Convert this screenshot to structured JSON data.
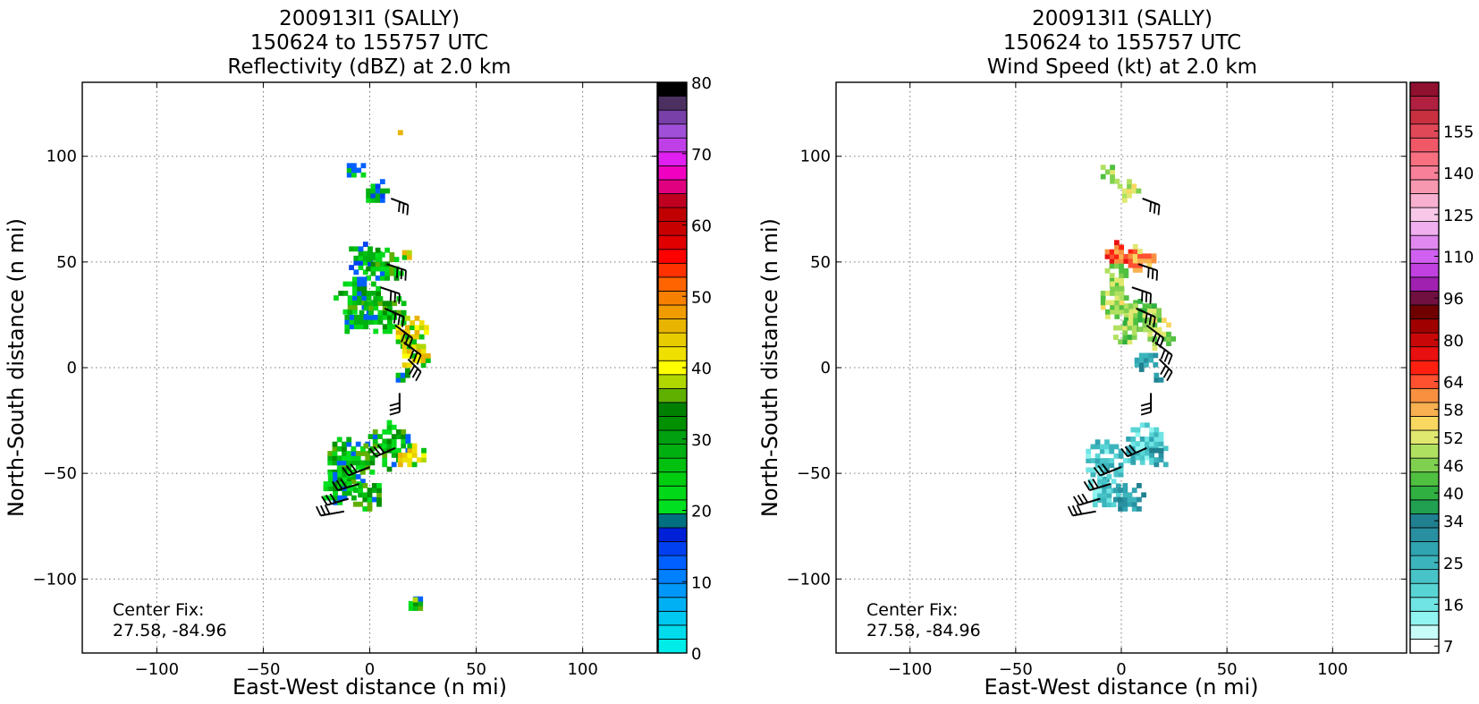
{
  "chart_data": [
    {
      "type": "heatmap",
      "title_lines": [
        "200913I1 (SALLY)",
        "150624 to 155757 UTC",
        "Reflectivity (dBZ) at 2.0 km"
      ],
      "xlabel": "East-West distance (n mi)",
      "ylabel": "North-South distance (n mi)",
      "xlim": [
        -135,
        135
      ],
      "ylim": [
        -135,
        135
      ],
      "xticks": [
        -100,
        -50,
        0,
        50,
        100
      ],
      "yticks": [
        -100,
        -50,
        0,
        50,
        100
      ],
      "xtick_labels": [
        "−100",
        "−50",
        "0",
        "50",
        "100"
      ],
      "ytick_labels": [
        "−100",
        "−50",
        "0",
        "50",
        "100"
      ],
      "grid": true,
      "annotation_lines": [
        "Center Fix:",
        "27.58, -84.96"
      ],
      "colorbar": {
        "min": 0,
        "max": 80,
        "tick_values": [
          0,
          10,
          20,
          30,
          40,
          50,
          60,
          70,
          80
        ],
        "tick_labels": [
          "0",
          "10",
          "20",
          "30",
          "40",
          "50",
          "60",
          "70",
          "80"
        ],
        "colors": [
          "#00ece8",
          "#00dcec",
          "#00c8f0",
          "#00b0f4",
          "#0098f8",
          "#0080fc",
          "#0060ff",
          "#0040f0",
          "#0020d8",
          "#007080",
          "#00e020",
          "#00d818",
          "#00cc10",
          "#00c010",
          "#00b010",
          "#00a010",
          "#009000",
          "#008000",
          "#60b000",
          "#b0d800",
          "#ffff00",
          "#f0e000",
          "#e8cc00",
          "#e8b400",
          "#f09c00",
          "#f88000",
          "#ff6400",
          "#ff3200",
          "#ff0000",
          "#e00000",
          "#c80000",
          "#c00000",
          "#c00020",
          "#e00080",
          "#f000c0",
          "#e020f0",
          "#c040e8",
          "#a050d8",
          "#7840a8",
          "#4c3060",
          "#000000"
        ]
      },
      "field_clusters": [
        {
          "x": 14,
          "y": 111,
          "r": 3,
          "kind": "hi"
        },
        {
          "x": -8,
          "y": 93,
          "r": 5,
          "kind": "low"
        },
        {
          "x": 2,
          "y": 82,
          "r": 6,
          "kind": "low"
        },
        {
          "x": -4,
          "y": 50,
          "r": 8,
          "kind": "low"
        },
        {
          "x": 5,
          "y": 46,
          "r": 9,
          "kind": "mid"
        },
        {
          "x": 16,
          "y": 52,
          "r": 3,
          "kind": "hi"
        },
        {
          "x": -6,
          "y": 32,
          "r": 11,
          "kind": "mid"
        },
        {
          "x": 6,
          "y": 25,
          "r": 11,
          "kind": "mid"
        },
        {
          "x": 18,
          "y": 15,
          "r": 8,
          "kind": "hi"
        },
        {
          "x": 20,
          "y": 5,
          "r": 7,
          "kind": "hi"
        },
        {
          "x": -8,
          "y": 20,
          "r": 6,
          "kind": "low"
        },
        {
          "x": 14,
          "y": -5,
          "r": 4,
          "kind": "mid"
        },
        {
          "x": -10,
          "y": -45,
          "r": 12,
          "kind": "mid"
        },
        {
          "x": 8,
          "y": -38,
          "r": 11,
          "kind": "mid"
        },
        {
          "x": 18,
          "y": -42,
          "r": 7,
          "kind": "hi"
        },
        {
          "x": -15,
          "y": -58,
          "r": 9,
          "kind": "mid"
        },
        {
          "x": -2,
          "y": -62,
          "r": 8,
          "kind": "mid"
        },
        {
          "x": 20,
          "y": -113,
          "r": 4,
          "kind": "mid"
        },
        {
          "x": 20,
          "y": -111,
          "r": 2,
          "kind": "hi"
        }
      ],
      "wind_barbs": [
        {
          "x": 10,
          "y": 80,
          "u": 8,
          "v": -3
        },
        {
          "x": 8,
          "y": 49,
          "u": 9,
          "v": -3
        },
        {
          "x": 5,
          "y": 38,
          "u": 9,
          "v": -3
        },
        {
          "x": 7,
          "y": 28,
          "u": 9,
          "v": -4
        },
        {
          "x": 12,
          "y": 20,
          "u": 8,
          "v": -6
        },
        {
          "x": 16,
          "y": 12,
          "u": 8,
          "v": -6
        },
        {
          "x": 18,
          "y": 4,
          "u": 6,
          "v": -6
        },
        {
          "x": 14,
          "y": -12,
          "u": 0,
          "v": -9
        },
        {
          "x": 12,
          "y": -38,
          "u": -9,
          "v": -4
        },
        {
          "x": 0,
          "y": -47,
          "u": -10,
          "v": -4
        },
        {
          "x": -5,
          "y": -55,
          "u": -10,
          "v": -3
        },
        {
          "x": -10,
          "y": -62,
          "u": -10,
          "v": -3
        },
        {
          "x": -12,
          "y": -68,
          "u": -11,
          "v": -2
        }
      ]
    },
    {
      "type": "heatmap",
      "title_lines": [
        "200913I1 (SALLY)",
        "150624 to 155757 UTC",
        "Wind Speed (kt) at 2.0 km"
      ],
      "xlabel": "East-West distance (n mi)",
      "ylabel": "North-South distance (n mi)",
      "xlim": [
        -135,
        135
      ],
      "ylim": [
        -135,
        135
      ],
      "xticks": [
        -100,
        -50,
        0,
        50,
        100
      ],
      "yticks": [
        -100,
        -50,
        0,
        50,
        100
      ],
      "xtick_labels": [
        "−100",
        "−50",
        "0",
        "50",
        "100"
      ],
      "ytick_labels": [
        "−100",
        "−50",
        "0",
        "50",
        "100"
      ],
      "grid": true,
      "annotation_lines": [
        "Center Fix:",
        "27.58, -84.96"
      ],
      "colorbar": {
        "tick_labels": [
          "7",
          "16",
          "25",
          "34",
          "40",
          "46",
          "52",
          "58",
          "64",
          "80",
          "96",
          "110",
          "125",
          "140",
          "155"
        ],
        "tick_level_index": [
          0,
          3,
          6,
          9,
          11,
          13,
          15,
          17,
          19,
          22,
          25,
          28,
          31,
          34,
          37
        ],
        "colors": [
          "#ffffff",
          "#c8fcf8",
          "#90f4f0",
          "#70e4e4",
          "#58d4d4",
          "#48c4c8",
          "#3cb4bc",
          "#30a4b0",
          "#2890a0",
          "#208090",
          "#20a050",
          "#30b040",
          "#50c040",
          "#80d050",
          "#b0e060",
          "#e0e870",
          "#f8d860",
          "#f8b050",
          "#f89040",
          "#ff5030",
          "#ff2010",
          "#e81010",
          "#c80808",
          "#a00000",
          "#700000",
          "#701040",
          "#a020b0",
          "#c040e0",
          "#d060f0",
          "#e088f0",
          "#f0b0f0",
          "#f8c8e8",
          "#f8b0d0",
          "#f898b0",
          "#f88098",
          "#f87080",
          "#f05868",
          "#e04858",
          "#c83040",
          "#b02040",
          "#901030"
        ]
      },
      "field_clusters": [
        {
          "x": -7,
          "y": 90,
          "r": 5,
          "kind": "w_mid"
        },
        {
          "x": 2,
          "y": 82,
          "r": 6,
          "kind": "w_yel"
        },
        {
          "x": -3,
          "y": 52,
          "r": 7,
          "kind": "w_red"
        },
        {
          "x": 8,
          "y": 50,
          "r": 7,
          "kind": "w_org"
        },
        {
          "x": -4,
          "y": 42,
          "r": 6,
          "kind": "w_yel"
        },
        {
          "x": -3,
          "y": 30,
          "r": 9,
          "kind": "w_yel"
        },
        {
          "x": 8,
          "y": 24,
          "r": 9,
          "kind": "w_grn"
        },
        {
          "x": 16,
          "y": 14,
          "r": 8,
          "kind": "w_yel"
        },
        {
          "x": 0,
          "y": 15,
          "r": 6,
          "kind": "w_grn"
        },
        {
          "x": 10,
          "y": 2,
          "r": 6,
          "kind": "w_teal"
        },
        {
          "x": 15,
          "y": -5,
          "r": 4,
          "kind": "w_teal"
        },
        {
          "x": -8,
          "y": -45,
          "r": 11,
          "kind": "w_cyan"
        },
        {
          "x": 10,
          "y": -38,
          "r": 10,
          "kind": "w_cyan"
        },
        {
          "x": -10,
          "y": -60,
          "r": 8,
          "kind": "w_cyan"
        },
        {
          "x": 2,
          "y": -62,
          "r": 8,
          "kind": "w_teal"
        },
        {
          "x": 16,
          "y": -44,
          "r": 5,
          "kind": "w_teal"
        }
      ],
      "wind_barbs": [
        {
          "x": 10,
          "y": 80,
          "u": 8,
          "v": -3
        },
        {
          "x": 8,
          "y": 49,
          "u": 9,
          "v": -3
        },
        {
          "x": 5,
          "y": 38,
          "u": 9,
          "v": -3
        },
        {
          "x": 7,
          "y": 28,
          "u": 9,
          "v": -4
        },
        {
          "x": 12,
          "y": 20,
          "u": 8,
          "v": -6
        },
        {
          "x": 16,
          "y": 12,
          "u": 8,
          "v": -6
        },
        {
          "x": 18,
          "y": 4,
          "u": 6,
          "v": -6
        },
        {
          "x": 14,
          "y": -12,
          "u": 0,
          "v": -9
        },
        {
          "x": 12,
          "y": -38,
          "u": -9,
          "v": -4
        },
        {
          "x": 0,
          "y": -47,
          "u": -10,
          "v": -4
        },
        {
          "x": -5,
          "y": -55,
          "u": -10,
          "v": -3
        },
        {
          "x": -10,
          "y": -62,
          "u": -10,
          "v": -3
        },
        {
          "x": -12,
          "y": -68,
          "u": -11,
          "v": -2
        }
      ]
    }
  ]
}
